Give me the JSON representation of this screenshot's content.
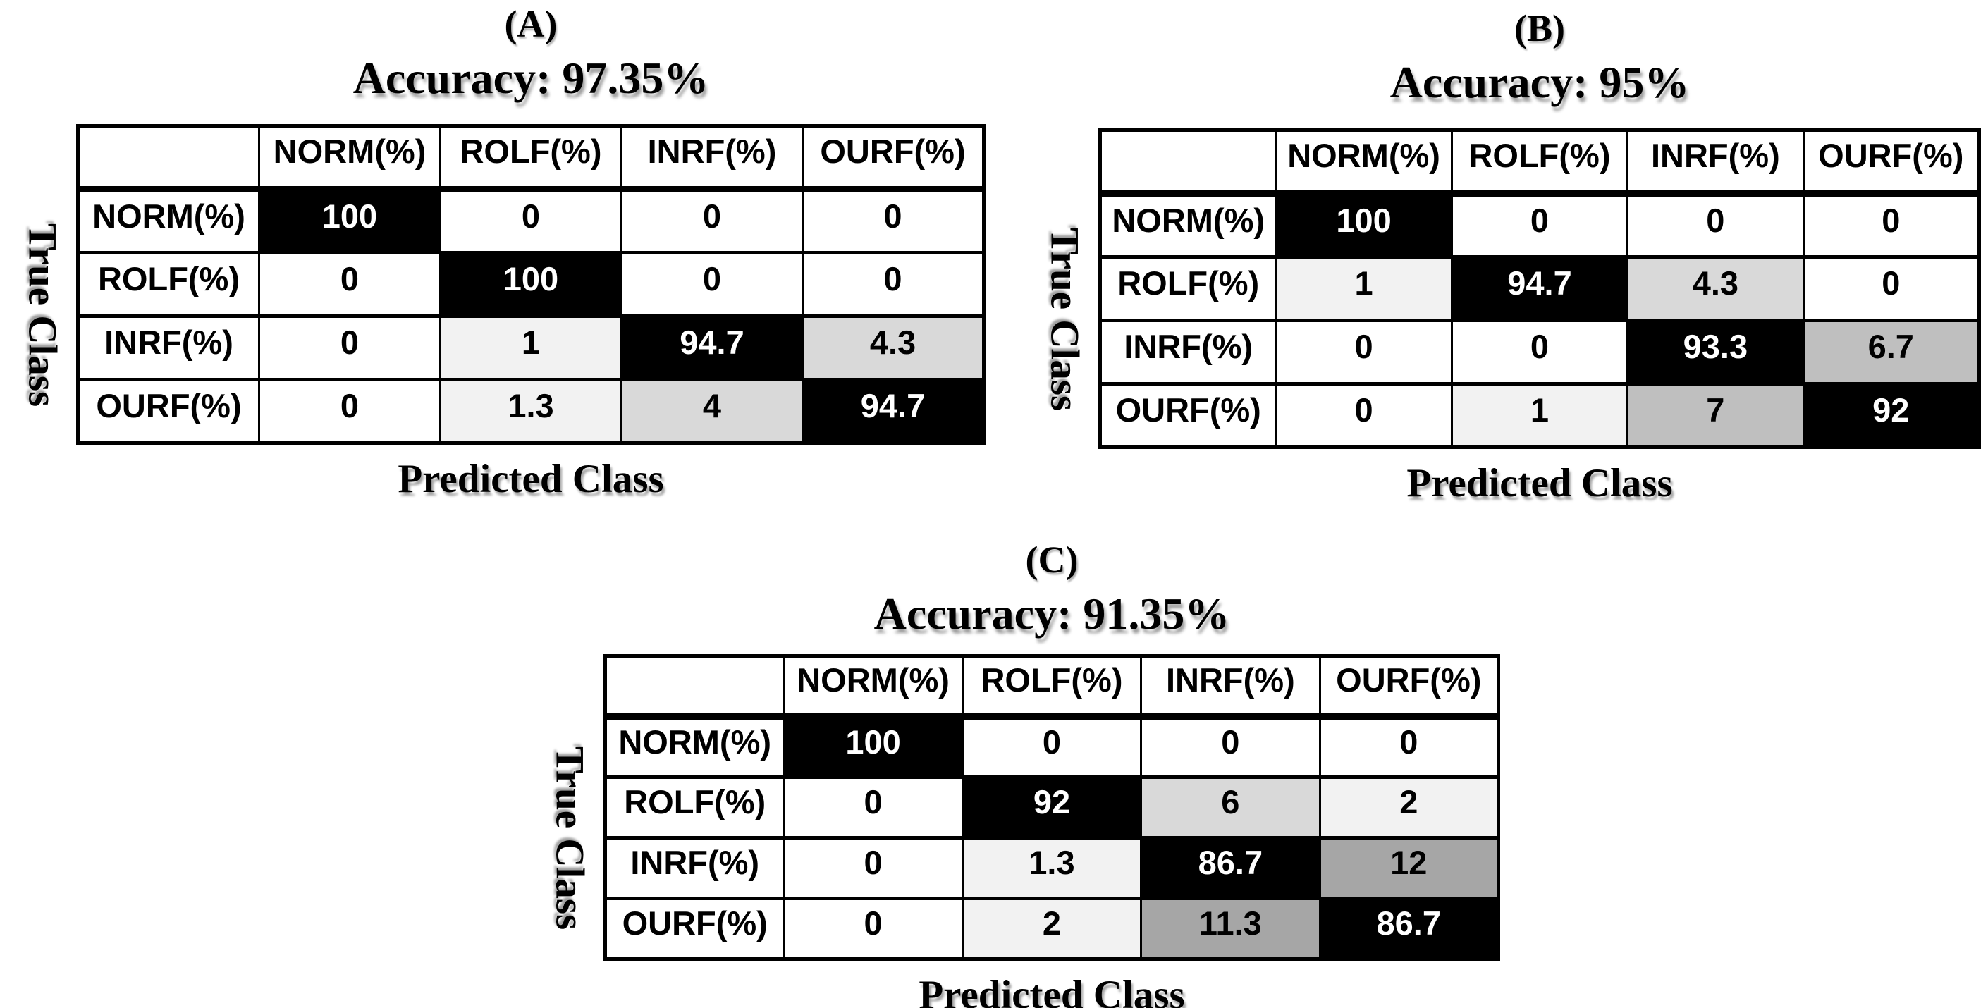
{
  "palette": {
    "diagonal_bg": "#000000",
    "diagonal_text": "#ffffff",
    "cell_text": "#000000",
    "grid_line": "#000000",
    "background": "#ffffff",
    "bins": [
      {
        "max": 0,
        "color": "#ffffff"
      },
      {
        "max": 3,
        "color": "#f2f2f2"
      },
      {
        "max": 6.4,
        "color": "#d9d9d9"
      },
      {
        "max": 9,
        "color": "#bfbfbf"
      },
      {
        "max": 100,
        "color": "#a6a6a6"
      }
    ]
  },
  "chart_data": [
    {
      "type": "heatmap",
      "panel_label": "(A)",
      "title": "Accuracy: 97.35%",
      "xlabel": "Predicted Class",
      "ylabel": "True Class",
      "legend_position": "none",
      "columns": [
        "NORM(%)",
        "ROLF(%)",
        "INRF(%)",
        "OURF(%)"
      ],
      "rows": [
        "NORM(%)",
        "ROLF(%)",
        "INRF(%)",
        "OURF(%)"
      ],
      "values": [
        [
          100,
          0,
          0,
          0
        ],
        [
          0,
          100,
          0,
          0
        ],
        [
          0,
          1,
          94.7,
          4.3
        ],
        [
          0,
          1.3,
          4,
          94.7
        ]
      ]
    },
    {
      "type": "heatmap",
      "panel_label": "(B)",
      "title": "Accuracy: 95%",
      "xlabel": "Predicted Class",
      "ylabel": "True Class",
      "legend_position": "none",
      "columns": [
        "NORM(%)",
        "ROLF(%)",
        "INRF(%)",
        "OURF(%)"
      ],
      "rows": [
        "NORM(%)",
        "ROLF(%)",
        "INRF(%)",
        "OURF(%)"
      ],
      "values": [
        [
          100,
          0,
          0,
          0
        ],
        [
          1,
          94.7,
          4.3,
          0
        ],
        [
          0,
          0,
          93.3,
          6.7
        ],
        [
          0,
          1,
          7,
          92
        ]
      ]
    },
    {
      "type": "heatmap",
      "panel_label": "(C)",
      "title": "Accuracy: 91.35%",
      "xlabel": "Predicted Class",
      "ylabel": "True Class",
      "legend_position": "none",
      "columns": [
        "NORM(%)",
        "ROLF(%)",
        "INRF(%)",
        "OURF(%)"
      ],
      "rows": [
        "NORM(%)",
        "ROLF(%)",
        "INRF(%)",
        "OURF(%)"
      ],
      "values": [
        [
          100,
          0,
          0,
          0
        ],
        [
          0,
          92,
          6,
          2
        ],
        [
          0,
          1.3,
          86.7,
          12
        ],
        [
          0,
          2,
          11.3,
          86.7
        ]
      ]
    }
  ]
}
